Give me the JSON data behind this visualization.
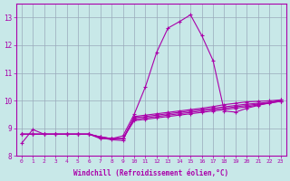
{
  "xlabel": "Windchill (Refroidissement éolien,°C)",
  "bg_color": "#c8e8e8",
  "line_color": "#aa00aa",
  "grid_color": "#99aabb",
  "xlim": [
    -0.5,
    23.5
  ],
  "ylim": [
    8.0,
    13.5
  ],
  "xticks": [
    0,
    1,
    2,
    3,
    4,
    5,
    6,
    7,
    8,
    9,
    10,
    11,
    12,
    13,
    14,
    15,
    16,
    17,
    18,
    19,
    20,
    21,
    22,
    23
  ],
  "yticks": [
    8,
    9,
    10,
    11,
    12,
    13
  ],
  "series": [
    [
      8.45,
      8.95,
      8.78,
      8.78,
      8.78,
      8.78,
      8.78,
      8.62,
      8.62,
      8.72,
      9.5,
      10.5,
      11.75,
      12.62,
      12.85,
      13.1,
      12.35,
      11.45,
      9.62,
      9.58,
      9.72,
      9.82,
      9.92,
      10.02
    ],
    [
      8.78,
      8.78,
      8.78,
      8.78,
      8.78,
      8.78,
      8.78,
      8.65,
      8.58,
      8.55,
      9.42,
      9.47,
      9.52,
      9.57,
      9.62,
      9.67,
      9.72,
      9.78,
      9.85,
      9.9,
      9.95,
      9.97,
      9.99,
      10.02
    ],
    [
      8.78,
      8.78,
      8.78,
      8.78,
      8.78,
      8.78,
      8.78,
      8.68,
      8.62,
      8.62,
      9.38,
      9.42,
      9.47,
      9.52,
      9.57,
      9.62,
      9.67,
      9.72,
      9.77,
      9.82,
      9.87,
      9.9,
      9.94,
      9.97
    ],
    [
      8.78,
      8.78,
      8.78,
      8.78,
      8.78,
      8.78,
      8.78,
      8.68,
      8.62,
      8.62,
      9.32,
      9.37,
      9.42,
      9.47,
      9.52,
      9.57,
      9.62,
      9.67,
      9.72,
      9.77,
      9.82,
      9.87,
      9.92,
      9.97
    ],
    [
      8.78,
      8.78,
      8.78,
      8.78,
      8.78,
      8.78,
      8.78,
      8.68,
      8.62,
      8.62,
      9.27,
      9.32,
      9.37,
      9.42,
      9.47,
      9.52,
      9.57,
      9.62,
      9.67,
      9.72,
      9.77,
      9.84,
      9.9,
      9.97
    ]
  ]
}
